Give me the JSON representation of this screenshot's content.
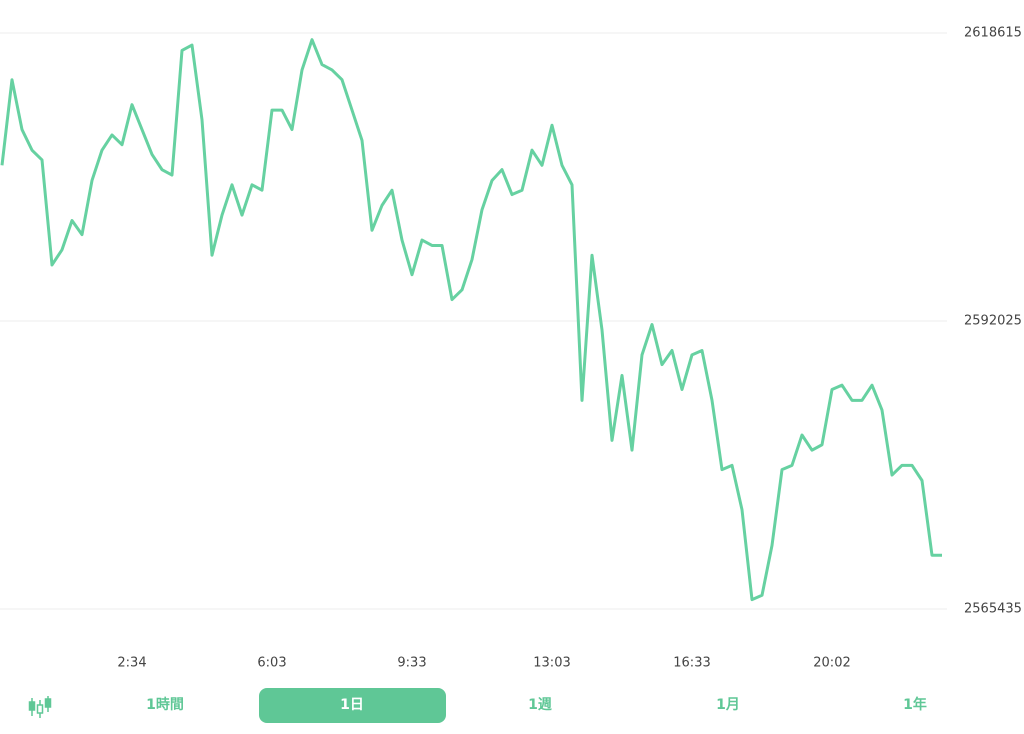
{
  "chart_data": {
    "type": "line",
    "categories": [
      null,
      null,
      null,
      null,
      null,
      null,
      null,
      null,
      null,
      null,
      null,
      null,
      null,
      "2:34",
      null,
      null,
      null,
      null,
      null,
      null,
      null,
      null,
      null,
      null,
      null,
      null,
      null,
      "6:03",
      null,
      null,
      null,
      null,
      null,
      null,
      null,
      null,
      null,
      null,
      null,
      null,
      null,
      "9:33",
      null,
      null,
      null,
      null,
      null,
      null,
      null,
      null,
      null,
      null,
      null,
      null,
      null,
      "13:03",
      null,
      null,
      null,
      null,
      null,
      null,
      null,
      null,
      null,
      null,
      null,
      null,
      null,
      "16:33",
      null,
      null,
      null,
      null,
      null,
      null,
      null,
      null,
      null,
      null,
      null,
      null,
      null,
      "20:02",
      null,
      null,
      null,
      null,
      null,
      null,
      null,
      null,
      null,
      null,
      null
    ],
    "series": [
      {
        "color": "#66d1a1",
        "values": [
          2606400,
          2614300,
          2609700,
          2607800,
          2606900,
          2597200,
          2598600,
          2601300,
          2600000,
          2605000,
          2607800,
          2609200,
          2608300,
          2612000,
          2609700,
          2607400,
          2606000,
          2605500,
          2617000,
          2617500,
          2610600,
          2598100,
          2601800,
          2604600,
          2601800,
          2604600,
          2604100,
          2611500,
          2611500,
          2609700,
          2615200,
          2618000,
          2615700,
          2615200,
          2614300,
          2611500,
          2608700,
          2600400,
          2602700,
          2604100,
          2599500,
          2596300,
          2599500,
          2599000,
          2599000,
          2594000,
          2594900,
          2597700,
          2602300,
          2605000,
          2606000,
          2603700,
          2604100,
          2607800,
          2606400,
          2610100,
          2606400,
          2604600,
          2584700,
          2598100,
          2591200,
          2581000,
          2587000,
          2580100,
          2588900,
          2591700,
          2588000,
          2589300,
          2585700,
          2588900,
          2589300,
          2584700,
          2578300,
          2578700,
          2574600,
          2566300,
          2566700,
          2571300,
          2578300,
          2578700,
          2581500,
          2580100,
          2580600,
          2585700,
          2586100,
          2584700,
          2584700,
          2586100,
          2583800,
          2577800,
          2578700,
          2578700,
          2577300,
          2570400,
          2570400
        ]
      }
    ],
    "ylim": [
      2565435,
      2618615
    ],
    "yticks": [
      2565435,
      2592025,
      2618615
    ],
    "grid": true
  },
  "tabs": {
    "items": [
      "1時間",
      "1日",
      "1週",
      "1月",
      "1年"
    ],
    "selected": 1
  }
}
